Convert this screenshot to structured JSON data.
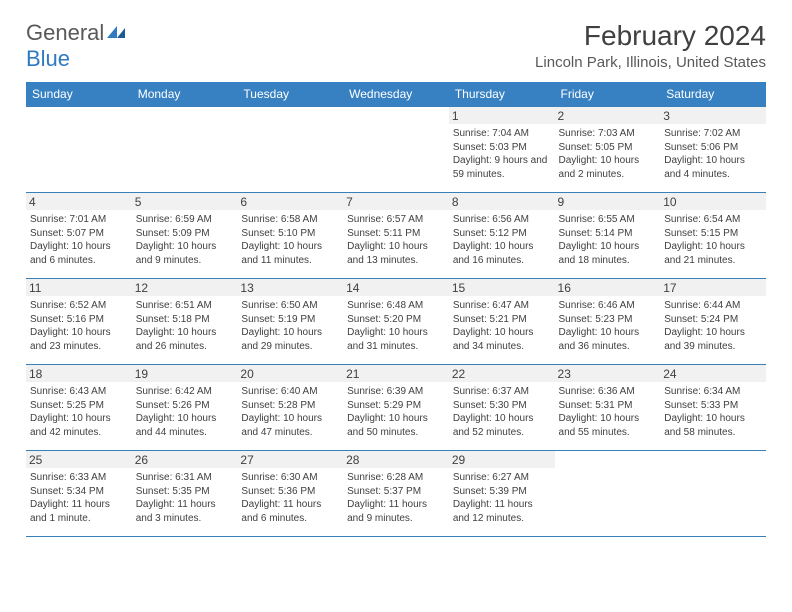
{
  "logo": {
    "general": "General",
    "blue": "Blue"
  },
  "title": "February 2024",
  "location": "Lincoln Park, Illinois, United States",
  "colors": {
    "header_bg": "#3781c2",
    "header_text": "#ffffff",
    "border": "#3b7fb8",
    "daynum_bg": "#f1f1f1",
    "text": "#404040",
    "logo_gray": "#595959",
    "logo_blue": "#2f7ac0"
  },
  "day_headers": [
    "Sunday",
    "Monday",
    "Tuesday",
    "Wednesday",
    "Thursday",
    "Friday",
    "Saturday"
  ],
  "weeks": [
    [
      {
        "n": "",
        "sr": "",
        "ss": "",
        "dl": ""
      },
      {
        "n": "",
        "sr": "",
        "ss": "",
        "dl": ""
      },
      {
        "n": "",
        "sr": "",
        "ss": "",
        "dl": ""
      },
      {
        "n": "",
        "sr": "",
        "ss": "",
        "dl": ""
      },
      {
        "n": "1",
        "sr": "Sunrise: 7:04 AM",
        "ss": "Sunset: 5:03 PM",
        "dl": "Daylight: 9 hours and 59 minutes."
      },
      {
        "n": "2",
        "sr": "Sunrise: 7:03 AM",
        "ss": "Sunset: 5:05 PM",
        "dl": "Daylight: 10 hours and 2 minutes."
      },
      {
        "n": "3",
        "sr": "Sunrise: 7:02 AM",
        "ss": "Sunset: 5:06 PM",
        "dl": "Daylight: 10 hours and 4 minutes."
      }
    ],
    [
      {
        "n": "4",
        "sr": "Sunrise: 7:01 AM",
        "ss": "Sunset: 5:07 PM",
        "dl": "Daylight: 10 hours and 6 minutes."
      },
      {
        "n": "5",
        "sr": "Sunrise: 6:59 AM",
        "ss": "Sunset: 5:09 PM",
        "dl": "Daylight: 10 hours and 9 minutes."
      },
      {
        "n": "6",
        "sr": "Sunrise: 6:58 AM",
        "ss": "Sunset: 5:10 PM",
        "dl": "Daylight: 10 hours and 11 minutes."
      },
      {
        "n": "7",
        "sr": "Sunrise: 6:57 AM",
        "ss": "Sunset: 5:11 PM",
        "dl": "Daylight: 10 hours and 13 minutes."
      },
      {
        "n": "8",
        "sr": "Sunrise: 6:56 AM",
        "ss": "Sunset: 5:12 PM",
        "dl": "Daylight: 10 hours and 16 minutes."
      },
      {
        "n": "9",
        "sr": "Sunrise: 6:55 AM",
        "ss": "Sunset: 5:14 PM",
        "dl": "Daylight: 10 hours and 18 minutes."
      },
      {
        "n": "10",
        "sr": "Sunrise: 6:54 AM",
        "ss": "Sunset: 5:15 PM",
        "dl": "Daylight: 10 hours and 21 minutes."
      }
    ],
    [
      {
        "n": "11",
        "sr": "Sunrise: 6:52 AM",
        "ss": "Sunset: 5:16 PM",
        "dl": "Daylight: 10 hours and 23 minutes."
      },
      {
        "n": "12",
        "sr": "Sunrise: 6:51 AM",
        "ss": "Sunset: 5:18 PM",
        "dl": "Daylight: 10 hours and 26 minutes."
      },
      {
        "n": "13",
        "sr": "Sunrise: 6:50 AM",
        "ss": "Sunset: 5:19 PM",
        "dl": "Daylight: 10 hours and 29 minutes."
      },
      {
        "n": "14",
        "sr": "Sunrise: 6:48 AM",
        "ss": "Sunset: 5:20 PM",
        "dl": "Daylight: 10 hours and 31 minutes."
      },
      {
        "n": "15",
        "sr": "Sunrise: 6:47 AM",
        "ss": "Sunset: 5:21 PM",
        "dl": "Daylight: 10 hours and 34 minutes."
      },
      {
        "n": "16",
        "sr": "Sunrise: 6:46 AM",
        "ss": "Sunset: 5:23 PM",
        "dl": "Daylight: 10 hours and 36 minutes."
      },
      {
        "n": "17",
        "sr": "Sunrise: 6:44 AM",
        "ss": "Sunset: 5:24 PM",
        "dl": "Daylight: 10 hours and 39 minutes."
      }
    ],
    [
      {
        "n": "18",
        "sr": "Sunrise: 6:43 AM",
        "ss": "Sunset: 5:25 PM",
        "dl": "Daylight: 10 hours and 42 minutes."
      },
      {
        "n": "19",
        "sr": "Sunrise: 6:42 AM",
        "ss": "Sunset: 5:26 PM",
        "dl": "Daylight: 10 hours and 44 minutes."
      },
      {
        "n": "20",
        "sr": "Sunrise: 6:40 AM",
        "ss": "Sunset: 5:28 PM",
        "dl": "Daylight: 10 hours and 47 minutes."
      },
      {
        "n": "21",
        "sr": "Sunrise: 6:39 AM",
        "ss": "Sunset: 5:29 PM",
        "dl": "Daylight: 10 hours and 50 minutes."
      },
      {
        "n": "22",
        "sr": "Sunrise: 6:37 AM",
        "ss": "Sunset: 5:30 PM",
        "dl": "Daylight: 10 hours and 52 minutes."
      },
      {
        "n": "23",
        "sr": "Sunrise: 6:36 AM",
        "ss": "Sunset: 5:31 PM",
        "dl": "Daylight: 10 hours and 55 minutes."
      },
      {
        "n": "24",
        "sr": "Sunrise: 6:34 AM",
        "ss": "Sunset: 5:33 PM",
        "dl": "Daylight: 10 hours and 58 minutes."
      }
    ],
    [
      {
        "n": "25",
        "sr": "Sunrise: 6:33 AM",
        "ss": "Sunset: 5:34 PM",
        "dl": "Daylight: 11 hours and 1 minute."
      },
      {
        "n": "26",
        "sr": "Sunrise: 6:31 AM",
        "ss": "Sunset: 5:35 PM",
        "dl": "Daylight: 11 hours and 3 minutes."
      },
      {
        "n": "27",
        "sr": "Sunrise: 6:30 AM",
        "ss": "Sunset: 5:36 PM",
        "dl": "Daylight: 11 hours and 6 minutes."
      },
      {
        "n": "28",
        "sr": "Sunrise: 6:28 AM",
        "ss": "Sunset: 5:37 PM",
        "dl": "Daylight: 11 hours and 9 minutes."
      },
      {
        "n": "29",
        "sr": "Sunrise: 6:27 AM",
        "ss": "Sunset: 5:39 PM",
        "dl": "Daylight: 11 hours and 12 minutes."
      },
      {
        "n": "",
        "sr": "",
        "ss": "",
        "dl": ""
      },
      {
        "n": "",
        "sr": "",
        "ss": "",
        "dl": ""
      }
    ]
  ]
}
